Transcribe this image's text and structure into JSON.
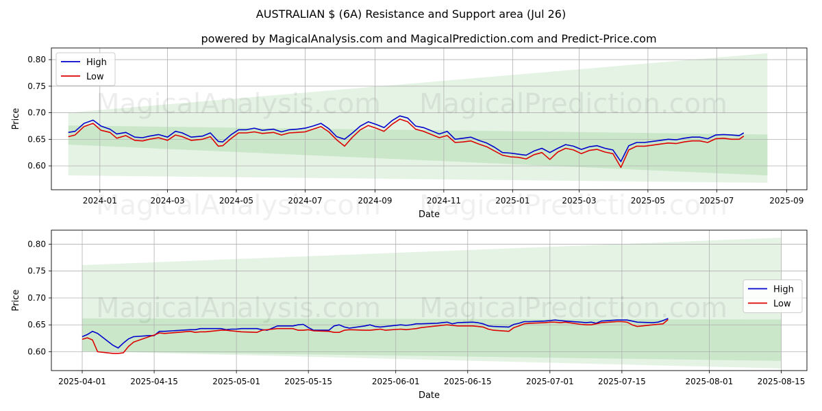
{
  "title": "AUSTRALIAN $ (6A) Resistance and Support area (Jul 26)",
  "subtitle": "powered by MagicalAnalysis.com and MagicalPrediction.com and Predict-Price.com",
  "watermarks": [
    "MagicalAnalysis.com",
    "MagicalPrediction.com"
  ],
  "colors": {
    "high": "#0000cc",
    "low": "#dd0000",
    "band": "#2ca02c"
  },
  "chart_data": [
    {
      "type": "line",
      "xlabel": "Date",
      "ylabel": "Price",
      "xlim": [
        "2023-11-19",
        "2025-09-19"
      ],
      "ylim": [
        0.555,
        0.822
      ],
      "x_ticks": [
        "2024-01",
        "2024-03",
        "2024-05",
        "2024-07",
        "2024-09",
        "2024-11",
        "2025-01",
        "2025-03",
        "2025-05",
        "2025-07",
        "2025-09"
      ],
      "y_ticks": [
        "0.60",
        "0.65",
        "0.70",
        "0.75",
        "0.80"
      ],
      "legend": "top-left",
      "grid": true,
      "series": [
        {
          "name": "High",
          "x": [
            "2023-12-04",
            "2023-12-10",
            "2023-12-18",
            "2023-12-26",
            "2024-01-02",
            "2024-01-10",
            "2024-01-16",
            "2024-01-24",
            "2024-02-01",
            "2024-02-08",
            "2024-02-14",
            "2024-02-22",
            "2024-03-01",
            "2024-03-08",
            "2024-03-14",
            "2024-03-22",
            "2024-04-01",
            "2024-04-08",
            "2024-04-15",
            "2024-04-19",
            "2024-04-26",
            "2024-05-03",
            "2024-05-10",
            "2024-05-17",
            "2024-05-24",
            "2024-06-03",
            "2024-06-10",
            "2024-06-17",
            "2024-06-24",
            "2024-07-01",
            "2024-07-08",
            "2024-07-15",
            "2024-07-22",
            "2024-07-29",
            "2024-08-05",
            "2024-08-12",
            "2024-08-19",
            "2024-08-26",
            "2024-09-02",
            "2024-09-09",
            "2024-09-16",
            "2024-09-23",
            "2024-09-30",
            "2024-10-07",
            "2024-10-14",
            "2024-10-21",
            "2024-10-28",
            "2024-11-04",
            "2024-11-11",
            "2024-11-18",
            "2024-11-25",
            "2024-12-02",
            "2024-12-09",
            "2024-12-16",
            "2024-12-23",
            "2024-12-30",
            "2025-01-06",
            "2025-01-13",
            "2025-01-20",
            "2025-01-27",
            "2025-02-03",
            "2025-02-10",
            "2025-02-17",
            "2025-02-24",
            "2025-03-03",
            "2025-03-10",
            "2025-03-17",
            "2025-03-24",
            "2025-03-31",
            "2025-04-07",
            "2025-04-14",
            "2025-04-21",
            "2025-04-28",
            "2025-05-05",
            "2025-05-12",
            "2025-05-19",
            "2025-05-26",
            "2025-06-02",
            "2025-06-09",
            "2025-06-16",
            "2025-06-23",
            "2025-06-30",
            "2025-07-07",
            "2025-07-14",
            "2025-07-21",
            "2025-07-25"
          ],
          "values": [
            0.663,
            0.665,
            0.68,
            0.686,
            0.675,
            0.669,
            0.66,
            0.663,
            0.654,
            0.653,
            0.656,
            0.659,
            0.654,
            0.665,
            0.662,
            0.654,
            0.656,
            0.662,
            0.646,
            0.645,
            0.658,
            0.668,
            0.668,
            0.671,
            0.667,
            0.669,
            0.664,
            0.668,
            0.669,
            0.671,
            0.675,
            0.68,
            0.67,
            0.655,
            0.65,
            0.662,
            0.675,
            0.683,
            0.678,
            0.672,
            0.685,
            0.694,
            0.69,
            0.675,
            0.672,
            0.666,
            0.66,
            0.665,
            0.65,
            0.652,
            0.654,
            0.648,
            0.643,
            0.635,
            0.625,
            0.624,
            0.622,
            0.62,
            0.628,
            0.633,
            0.625,
            0.633,
            0.64,
            0.637,
            0.631,
            0.636,
            0.638,
            0.633,
            0.63,
            0.608,
            0.638,
            0.644,
            0.644,
            0.646,
            0.648,
            0.65,
            0.649,
            0.652,
            0.654,
            0.654,
            0.651,
            0.658,
            0.659,
            0.658,
            0.657,
            0.662
          ]
        },
        {
          "name": "Low",
          "x": [
            "2023-12-04",
            "2023-12-10",
            "2023-12-18",
            "2023-12-26",
            "2024-01-02",
            "2024-01-10",
            "2024-01-16",
            "2024-01-24",
            "2024-02-01",
            "2024-02-08",
            "2024-02-14",
            "2024-02-22",
            "2024-03-01",
            "2024-03-08",
            "2024-03-14",
            "2024-03-22",
            "2024-04-01",
            "2024-04-08",
            "2024-04-15",
            "2024-04-19",
            "2024-04-26",
            "2024-05-03",
            "2024-05-10",
            "2024-05-17",
            "2024-05-24",
            "2024-06-03",
            "2024-06-10",
            "2024-06-17",
            "2024-06-24",
            "2024-07-01",
            "2024-07-08",
            "2024-07-15",
            "2024-07-22",
            "2024-07-29",
            "2024-08-05",
            "2024-08-12",
            "2024-08-19",
            "2024-08-26",
            "2024-09-02",
            "2024-09-09",
            "2024-09-16",
            "2024-09-23",
            "2024-09-30",
            "2024-10-07",
            "2024-10-14",
            "2024-10-21",
            "2024-10-28",
            "2024-11-04",
            "2024-11-11",
            "2024-11-18",
            "2024-11-25",
            "2024-12-02",
            "2024-12-09",
            "2024-12-16",
            "2024-12-23",
            "2024-12-30",
            "2025-01-06",
            "2025-01-13",
            "2025-01-20",
            "2025-01-27",
            "2025-02-03",
            "2025-02-10",
            "2025-02-17",
            "2025-02-24",
            "2025-03-03",
            "2025-03-10",
            "2025-03-17",
            "2025-03-24",
            "2025-03-31",
            "2025-04-07",
            "2025-04-14",
            "2025-04-21",
            "2025-04-28",
            "2025-05-05",
            "2025-05-12",
            "2025-05-19",
            "2025-05-26",
            "2025-06-02",
            "2025-06-09",
            "2025-06-16",
            "2025-06-23",
            "2025-06-30",
            "2025-07-07",
            "2025-07-14",
            "2025-07-21",
            "2025-07-25"
          ],
          "values": [
            0.655,
            0.658,
            0.674,
            0.68,
            0.667,
            0.663,
            0.652,
            0.657,
            0.648,
            0.647,
            0.65,
            0.653,
            0.648,
            0.658,
            0.655,
            0.648,
            0.65,
            0.655,
            0.637,
            0.638,
            0.651,
            0.662,
            0.662,
            0.664,
            0.661,
            0.663,
            0.658,
            0.662,
            0.663,
            0.664,
            0.669,
            0.674,
            0.664,
            0.649,
            0.637,
            0.654,
            0.668,
            0.676,
            0.671,
            0.665,
            0.678,
            0.688,
            0.683,
            0.669,
            0.665,
            0.659,
            0.653,
            0.657,
            0.644,
            0.645,
            0.647,
            0.641,
            0.636,
            0.628,
            0.62,
            0.617,
            0.616,
            0.613,
            0.621,
            0.625,
            0.612,
            0.626,
            0.633,
            0.63,
            0.623,
            0.629,
            0.631,
            0.626,
            0.623,
            0.597,
            0.63,
            0.637,
            0.637,
            0.639,
            0.641,
            0.643,
            0.642,
            0.645,
            0.647,
            0.647,
            0.644,
            0.651,
            0.652,
            0.65,
            0.65,
            0.656
          ]
        }
      ],
      "bands": [
        {
          "x": [
            "2023-12-04",
            "2025-08-15"
          ],
          "upper": [
            0.7,
            0.812
          ],
          "lower": [
            0.582,
            0.568
          ]
        },
        {
          "x": [
            "2023-12-04",
            "2025-08-15"
          ],
          "upper": [
            0.676,
            0.659
          ],
          "lower": [
            0.64,
            0.582
          ]
        }
      ]
    },
    {
      "type": "line",
      "xlabel": "Date",
      "ylabel": "Price",
      "xlim": [
        "2025-03-26",
        "2025-08-20"
      ],
      "ylim": [
        0.565,
        0.826
      ],
      "x_ticks": [
        "2025-04-01",
        "2025-04-15",
        "2025-05-01",
        "2025-05-15",
        "2025-06-01",
        "2025-06-15",
        "2025-07-01",
        "2025-07-15",
        "2025-08-01",
        "2025-08-15"
      ],
      "y_ticks": [
        "0.60",
        "0.65",
        "0.70",
        "0.75",
        "0.80"
      ],
      "legend": "center-right",
      "grid": true,
      "series": [
        {
          "name": "High",
          "x": [
            "2025-04-01",
            "2025-04-02",
            "2025-04-03",
            "2025-04-04",
            "2025-04-07",
            "2025-04-08",
            "2025-04-09",
            "2025-04-10",
            "2025-04-11",
            "2025-04-14",
            "2025-04-15",
            "2025-04-16",
            "2025-04-17",
            "2025-04-22",
            "2025-04-23",
            "2025-04-24",
            "2025-04-25",
            "2025-04-28",
            "2025-04-29",
            "2025-04-30",
            "2025-05-01",
            "2025-05-02",
            "2025-05-05",
            "2025-05-06",
            "2025-05-07",
            "2025-05-08",
            "2025-05-09",
            "2025-05-12",
            "2025-05-13",
            "2025-05-14",
            "2025-05-15",
            "2025-05-16",
            "2025-05-19",
            "2025-05-20",
            "2025-05-21",
            "2025-05-22",
            "2025-05-23",
            "2025-05-26",
            "2025-05-27",
            "2025-05-28",
            "2025-05-29",
            "2025-05-30",
            "2025-06-02",
            "2025-06-03",
            "2025-06-04",
            "2025-06-05",
            "2025-06-06",
            "2025-06-09",
            "2025-06-10",
            "2025-06-11",
            "2025-06-12",
            "2025-06-13",
            "2025-06-16",
            "2025-06-17",
            "2025-06-18",
            "2025-06-19",
            "2025-06-20",
            "2025-06-23",
            "2025-06-24",
            "2025-06-25",
            "2025-06-26",
            "2025-06-27",
            "2025-06-30",
            "2025-07-01",
            "2025-07-02",
            "2025-07-03",
            "2025-07-04",
            "2025-07-07",
            "2025-07-08",
            "2025-07-09",
            "2025-07-10",
            "2025-07-11",
            "2025-07-14",
            "2025-07-15",
            "2025-07-16",
            "2025-07-17",
            "2025-07-18",
            "2025-07-21",
            "2025-07-22",
            "2025-07-23",
            "2025-07-24"
          ],
          "values": [
            0.628,
            0.632,
            0.638,
            0.634,
            0.612,
            0.607,
            0.616,
            0.624,
            0.628,
            0.63,
            0.63,
            0.638,
            0.638,
            0.641,
            0.641,
            0.643,
            0.643,
            0.643,
            0.641,
            0.642,
            0.642,
            0.643,
            0.643,
            0.641,
            0.64,
            0.644,
            0.648,
            0.648,
            0.65,
            0.651,
            0.645,
            0.64,
            0.64,
            0.648,
            0.65,
            0.646,
            0.644,
            0.648,
            0.65,
            0.647,
            0.646,
            0.647,
            0.65,
            0.649,
            0.65,
            0.652,
            0.652,
            0.653,
            0.654,
            0.655,
            0.652,
            0.654,
            0.655,
            0.654,
            0.652,
            0.648,
            0.647,
            0.646,
            0.651,
            0.653,
            0.656,
            0.656,
            0.657,
            0.658,
            0.659,
            0.658,
            0.657,
            0.655,
            0.654,
            0.655,
            0.653,
            0.657,
            0.659,
            0.659,
            0.659,
            0.657,
            0.655,
            0.654,
            0.655,
            0.658,
            0.662
          ]
        },
        {
          "name": "Low",
          "x": [
            "2025-04-01",
            "2025-04-02",
            "2025-04-03",
            "2025-04-04",
            "2025-04-07",
            "2025-04-08",
            "2025-04-09",
            "2025-04-10",
            "2025-04-11",
            "2025-04-14",
            "2025-04-15",
            "2025-04-16",
            "2025-04-17",
            "2025-04-22",
            "2025-04-23",
            "2025-04-24",
            "2025-04-25",
            "2025-04-28",
            "2025-04-29",
            "2025-04-30",
            "2025-05-01",
            "2025-05-02",
            "2025-05-05",
            "2025-05-06",
            "2025-05-07",
            "2025-05-08",
            "2025-05-09",
            "2025-05-12",
            "2025-05-13",
            "2025-05-14",
            "2025-05-15",
            "2025-05-16",
            "2025-05-19",
            "2025-05-20",
            "2025-05-21",
            "2025-05-22",
            "2025-05-23",
            "2025-05-26",
            "2025-05-27",
            "2025-05-28",
            "2025-05-29",
            "2025-05-30",
            "2025-06-02",
            "2025-06-03",
            "2025-06-04",
            "2025-06-05",
            "2025-06-06",
            "2025-06-09",
            "2025-06-10",
            "2025-06-11",
            "2025-06-12",
            "2025-06-13",
            "2025-06-16",
            "2025-06-17",
            "2025-06-18",
            "2025-06-19",
            "2025-06-20",
            "2025-06-23",
            "2025-06-24",
            "2025-06-25",
            "2025-06-26",
            "2025-06-27",
            "2025-06-30",
            "2025-07-01",
            "2025-07-02",
            "2025-07-03",
            "2025-07-04",
            "2025-07-07",
            "2025-07-08",
            "2025-07-09",
            "2025-07-10",
            "2025-07-11",
            "2025-07-14",
            "2025-07-15",
            "2025-07-16",
            "2025-07-17",
            "2025-07-18",
            "2025-07-21",
            "2025-07-22",
            "2025-07-23",
            "2025-07-24"
          ],
          "values": [
            0.623,
            0.626,
            0.622,
            0.6,
            0.597,
            0.597,
            0.598,
            0.61,
            0.618,
            0.628,
            0.631,
            0.635,
            0.634,
            0.638,
            0.636,
            0.637,
            0.637,
            0.64,
            0.64,
            0.639,
            0.638,
            0.637,
            0.636,
            0.64,
            0.641,
            0.642,
            0.643,
            0.643,
            0.64,
            0.64,
            0.641,
            0.639,
            0.638,
            0.636,
            0.636,
            0.64,
            0.641,
            0.64,
            0.64,
            0.641,
            0.642,
            0.64,
            0.642,
            0.641,
            0.642,
            0.643,
            0.645,
            0.648,
            0.649,
            0.65,
            0.649,
            0.648,
            0.648,
            0.647,
            0.646,
            0.642,
            0.64,
            0.638,
            0.645,
            0.648,
            0.652,
            0.653,
            0.654,
            0.655,
            0.655,
            0.654,
            0.655,
            0.651,
            0.65,
            0.65,
            0.652,
            0.654,
            0.656,
            0.656,
            0.655,
            0.65,
            0.647,
            0.65,
            0.651,
            0.652,
            0.66
          ]
        }
      ],
      "bands": [
        {
          "x": [
            "2025-04-01",
            "2025-08-15"
          ],
          "upper": [
            0.761,
            0.812
          ],
          "lower": [
            0.601,
            0.569
          ]
        },
        {
          "x": [
            "2025-04-01",
            "2025-08-15"
          ],
          "upper": [
            0.662,
            0.66
          ],
          "lower": [
            0.601,
            0.583
          ]
        }
      ]
    }
  ]
}
